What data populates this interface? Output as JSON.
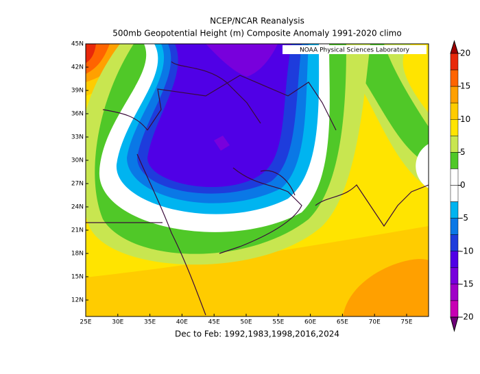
{
  "header": {
    "title": "NCEP/NCAR Reanalysis",
    "subtitle": "500mb Geopotential Height (m) Composite Anomaly 1991-2020 climo"
  },
  "map": {
    "credit": "NOAA Physical Sciences Laboratory",
    "caption": "Dec to Feb: 1992,1983,1998,2016,2024",
    "lon_labels": [
      "25E",
      "30E",
      "35E",
      "40E",
      "45E",
      "50E",
      "55E",
      "60E",
      "65E",
      "70E",
      "75E"
    ],
    "lat_labels": [
      "45N",
      "42N",
      "39N",
      "36N",
      "33N",
      "30N",
      "27N",
      "24N",
      "21N",
      "18N",
      "15N",
      "12N"
    ]
  },
  "colorbar": {
    "labels": [
      "20",
      "15",
      "10",
      "5",
      "0",
      "-5",
      "-10",
      "-15",
      "-20"
    ],
    "colors": [
      "#a00000",
      "#e8280a",
      "#ff6400",
      "#ffa000",
      "#ffcc00",
      "#ffe400",
      "#c8e650",
      "#50c828",
      "#ffffff",
      "#ffffff",
      "#00b4f0",
      "#0a78e6",
      "#1e3cdc",
      "#5000e6",
      "#7800dc",
      "#a000c8",
      "#c800b4",
      "#6e0078"
    ]
  }
}
